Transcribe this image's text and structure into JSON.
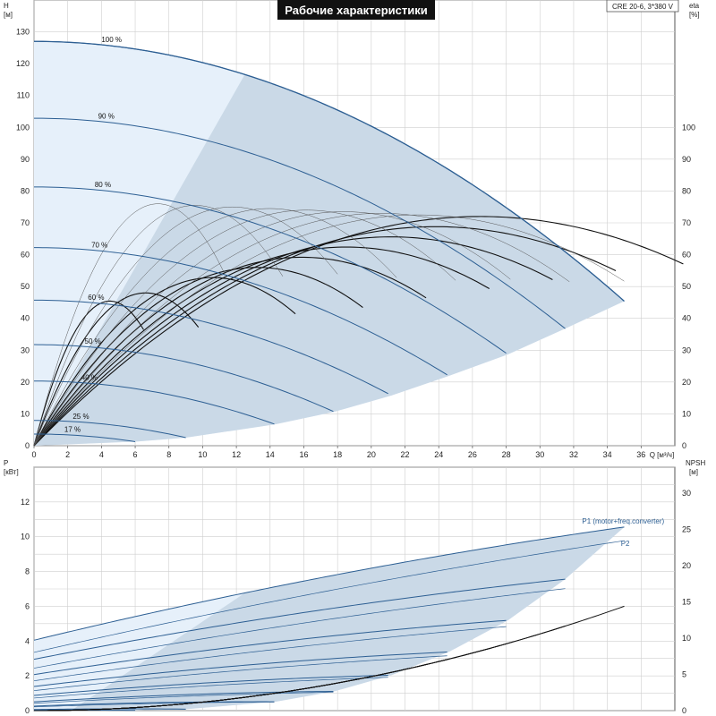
{
  "title": "Рабочие характеристики",
  "model": "CRE 20-6, 3*380 V",
  "colors": {
    "curve": "#2d5f93",
    "fill_dark": "#cad9e7",
    "fill_light": "#e6f0fa",
    "eff": "#111111",
    "grid": "#cfcfcf"
  },
  "chart_data": [
    {
      "type": "line",
      "name": "head",
      "y_axis_label": "H",
      "y_axis_unit": "[м]",
      "y_right_label": "eta",
      "y_right_unit": "[%]",
      "x_label": "Q [м³/ч]",
      "xlim": [
        0,
        38
      ],
      "ylim": [
        0,
        140
      ],
      "x_ticks": [
        "0",
        "2",
        "4",
        "6",
        "8",
        "10",
        "12",
        "14",
        "16",
        "18",
        "20",
        "22",
        "24",
        "26",
        "28",
        "30",
        "32",
        "34",
        "36"
      ],
      "y_ticks": [
        "0",
        "10",
        "20",
        "30",
        "40",
        "50",
        "60",
        "70",
        "80",
        "90",
        "100",
        "110",
        "120",
        "130"
      ],
      "y_right_ticks": [
        "0",
        "10",
        "20",
        "30",
        "40",
        "50",
        "60",
        "70",
        "80",
        "90",
        "100"
      ],
      "speeds": [
        {
          "label": "100 %",
          "s": 1.0,
          "qmax": 35.0
        },
        {
          "label": "90 %",
          "s": 0.9,
          "qmax": 31.5
        },
        {
          "label": "80 %",
          "s": 0.8,
          "qmax": 28.1
        },
        {
          "label": "70 %",
          "s": 0.7,
          "qmax": 24.6
        },
        {
          "label": "60 %",
          "s": 0.6,
          "qmax": 21.2
        },
        {
          "label": "50 %",
          "s": 0.5,
          "qmax": 17.8
        },
        {
          "label": "40 %",
          "s": 0.4,
          "qmax": 14.3
        },
        {
          "label": "25 %",
          "s": 0.25,
          "qmax": 9.0
        },
        {
          "label": "17 %",
          "s": 0.17,
          "qmax": 6.0
        }
      ],
      "head_coeffs": {
        "h0": 127,
        "b": 0.021,
        "c": 0.046
      },
      "head_window": {
        "q_left_frac": 0.37,
        "q_right": 35.0
      },
      "eff_curves": {
        "peak_eta": 72,
        "peak_q": 24.5,
        "shape": {
          "a": 5.9,
          "b": 0.12
        },
        "end_q": 35.0,
        "thin_count": 8
      }
    },
    {
      "type": "line",
      "name": "power",
      "y_axis_label": "P",
      "y_axis_unit": "[кВт]",
      "y_right_label": "NPSH",
      "y_right_unit": "[м]",
      "xlim": [
        0,
        38
      ],
      "ylim": [
        0,
        14
      ],
      "y_ticks": [
        "0",
        "2",
        "4",
        "6",
        "8",
        "10",
        "12"
      ],
      "y_right_ticks": [
        "0",
        "5",
        "10",
        "15",
        "20",
        "25",
        "30"
      ],
      "series_labels": {
        "p1": "P1 (motor+freq.converter)",
        "p2": "P2"
      },
      "power_coeffs": {
        "p1": {
          "a": 4.05,
          "b": 0.235,
          "c": -0.0014
        },
        "p2": {
          "a": 3.35,
          "b": 0.222,
          "c": -0.0011
        }
      },
      "npsh": {
        "k": 0.0105,
        "exp": 2.0,
        "qmax": 35.0
      }
    }
  ]
}
